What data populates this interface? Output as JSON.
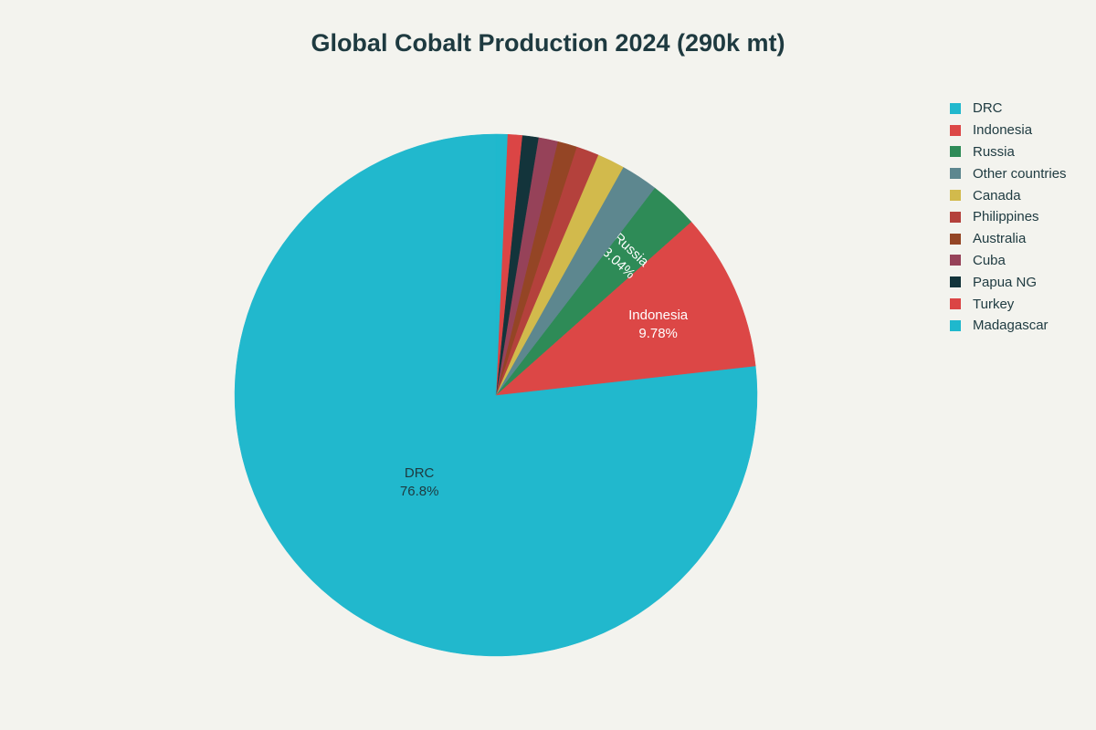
{
  "chart_data": {
    "type": "pie",
    "title": "Global Cobalt Production 2024 (290k mt)",
    "slices": [
      {
        "label": "DRC",
        "percent": 76.8,
        "color": "#21b8cd",
        "text_color": "#1e3a40",
        "percent_text": "76.8%"
      },
      {
        "label": "Indonesia",
        "percent": 9.78,
        "color": "#dc4746",
        "text_color": "#ffffff",
        "percent_text": "9.78%"
      },
      {
        "label": "Russia",
        "percent": 3.04,
        "color": "#2e8b57",
        "text_color": "#ffffff",
        "percent_text": "3.04%"
      },
      {
        "label": "Other countries",
        "percent": 2.3,
        "color": "#5d878f",
        "text_color": "#ffffff"
      },
      {
        "label": "Canada",
        "percent": 1.7,
        "color": "#d2ba4c",
        "text_color": "#1e3a40"
      },
      {
        "label": "Philippines",
        "percent": 1.4,
        "color": "#b4413c",
        "text_color": "#ffffff"
      },
      {
        "label": "Australia",
        "percent": 1.2,
        "color": "#944525",
        "text_color": "#ffffff"
      },
      {
        "label": "Cuba",
        "percent": 1.2,
        "color": "#964259",
        "text_color": "#ffffff"
      },
      {
        "label": "Papua NG",
        "percent": 1.0,
        "color": "#13343b",
        "text_color": "#ffffff"
      },
      {
        "label": "Turkey",
        "percent": 0.9,
        "color": "#db4545",
        "text_color": "#ffffff"
      },
      {
        "label": "Madagascar",
        "percent": 0.7,
        "color": "#1fb8cd",
        "text_color": "#1e3a40"
      }
    ],
    "legend_position": "top-right",
    "direction": "clockwise",
    "start_angle_deg": 0
  }
}
